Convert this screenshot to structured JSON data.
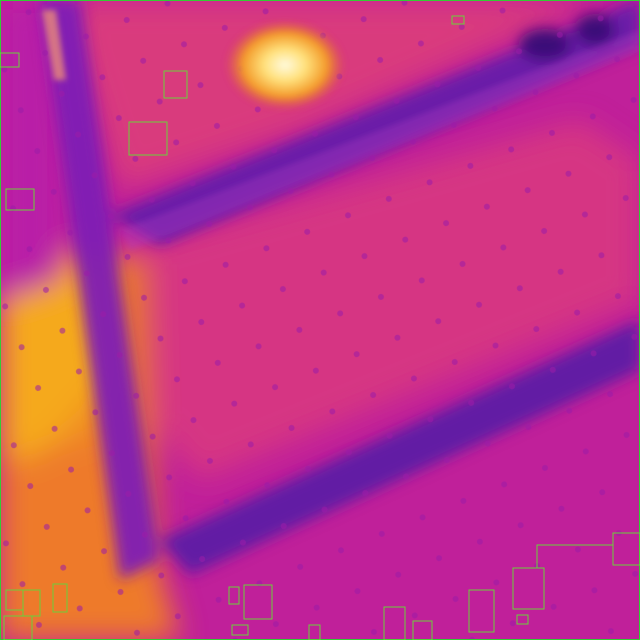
{
  "image": {
    "kind": "thermal-infrared-frame",
    "palette": "ironbow",
    "colors": {
      "cold": "#5a1aa8",
      "cool": "#8a1ab8",
      "mid": "#c0209a",
      "warm": "#e04a6a",
      "hot": "#f07a28",
      "hotter": "#f5a21e",
      "hottest": "#fff2a0",
      "frame_border": "#33cc33",
      "annotation_box": "#6ad03a"
    }
  },
  "annotations": {
    "label": "detection-boxes",
    "box_count": 24
  }
}
